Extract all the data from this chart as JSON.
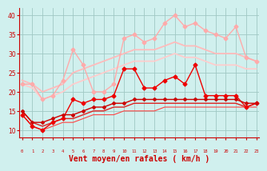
{
  "title": "",
  "xlabel": "Vent moyen/en rafales ( km/h )",
  "ylabel": "",
  "bg_color": "#d0f0ee",
  "grid_color": "#a0c8c4",
  "x": [
    0,
    1,
    2,
    3,
    4,
    5,
    6,
    7,
    8,
    9,
    10,
    11,
    12,
    13,
    14,
    15,
    16,
    17,
    18,
    19,
    20,
    21,
    22,
    23
  ],
  "lines": [
    {
      "comment": "light pink with markers - jagged upper line",
      "y": [
        22,
        22,
        18,
        19,
        23,
        31,
        27,
        20,
        20,
        22,
        34,
        35,
        33,
        34,
        38,
        40,
        37,
        38,
        36,
        35,
        34,
        37,
        29,
        28
      ],
      "color": "#ffaaaa",
      "lw": 1.0,
      "marker": "D",
      "ms": 2.5
    },
    {
      "comment": "lightest pink - straight trending line upper",
      "y": [
        23,
        22,
        20,
        21,
        22,
        25,
        26,
        27,
        28,
        29,
        30,
        31,
        31,
        31,
        32,
        33,
        32,
        32,
        31,
        30,
        30,
        30,
        29,
        28
      ],
      "color": "#ffbbbb",
      "lw": 1.3,
      "marker": null,
      "ms": 0
    },
    {
      "comment": "lightest pink - straight trending line lower",
      "y": [
        22,
        21,
        18,
        19,
        20,
        22,
        23,
        24,
        25,
        26,
        27,
        28,
        28,
        28,
        29,
        30,
        29,
        29,
        28,
        27,
        27,
        27,
        26,
        26
      ],
      "color": "#ffcccc",
      "lw": 1.3,
      "marker": null,
      "ms": 0
    },
    {
      "comment": "dark red jagged with markers",
      "y": [
        14,
        11,
        10,
        12,
        13,
        18,
        17,
        18,
        18,
        19,
        26,
        26,
        21,
        21,
        23,
        24,
        22,
        27,
        19,
        19,
        19,
        19,
        16,
        17
      ],
      "color": "#ee0000",
      "lw": 1.0,
      "marker": "D",
      "ms": 2.5
    },
    {
      "comment": "dark red nearly flat trending slightly up with markers",
      "y": [
        15,
        12,
        12,
        13,
        14,
        14,
        15,
        16,
        16,
        17,
        17,
        18,
        18,
        18,
        18,
        18,
        18,
        18,
        18,
        18,
        18,
        18,
        17,
        17
      ],
      "color": "#cc0000",
      "lw": 1.0,
      "marker": "D",
      "ms": 2.0
    },
    {
      "comment": "dark red straight line slightly upward",
      "y": [
        15,
        12,
        11,
        12,
        13,
        13,
        14,
        15,
        15,
        16,
        16,
        17,
        17,
        17,
        17,
        17,
        17,
        17,
        17,
        17,
        17,
        17,
        16,
        17
      ],
      "color": "#dd2222",
      "lw": 1.0,
      "marker": null,
      "ms": 0
    },
    {
      "comment": "dark red lower straight line slightly upward",
      "y": [
        14,
        11,
        10,
        11,
        12,
        12,
        13,
        14,
        14,
        14,
        15,
        15,
        15,
        15,
        16,
        16,
        16,
        16,
        16,
        16,
        16,
        16,
        16,
        16
      ],
      "color": "#ff4444",
      "lw": 0.8,
      "marker": null,
      "ms": 0
    }
  ],
  "xlim": [
    0,
    23
  ],
  "ylim": [
    8,
    42
  ],
  "yticks": [
    10,
    15,
    20,
    25,
    30,
    35,
    40
  ],
  "xticks": [
    0,
    1,
    2,
    3,
    4,
    5,
    6,
    7,
    8,
    9,
    10,
    11,
    12,
    13,
    14,
    15,
    16,
    17,
    18,
    19,
    20,
    21,
    22,
    23
  ],
  "arrow_color": "#cc0000",
  "tick_color": "#cc0000",
  "xlabel_color": "#cc0000",
  "xlabel_fontsize": 7
}
